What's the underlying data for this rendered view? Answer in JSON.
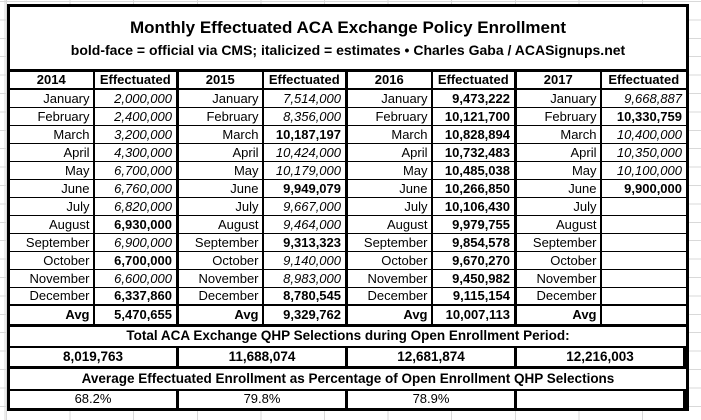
{
  "colors": {
    "background": "#ffffff",
    "text": "#000000",
    "border": "#000000",
    "gridline": "#d9d9d9"
  },
  "chart_data": {
    "type": "table",
    "title": "Monthly Effectuated ACA Exchange Policy Enrollment",
    "subtitle": "bold-face = official via CMS; italicized = estimates  •  Charles Gaba / ACASignups.net",
    "style_legend": {
      "official": "bold",
      "estimate": "italic"
    },
    "avg_label": "Avg",
    "totals_label": "Total ACA Exchange QHP Selections during Open Enrollment Period:",
    "pct_label": "Average Effectuated Enrollment as Percentage of Open Enrollment QHP Selections",
    "months": [
      "January",
      "February",
      "March",
      "April",
      "May",
      "June",
      "July",
      "August",
      "September",
      "October",
      "November",
      "December"
    ],
    "series": [
      {
        "year": "2014",
        "header": "Effectuated",
        "monthly": [
          {
            "value": "2,000,000",
            "style": "estimate"
          },
          {
            "value": "2,400,000",
            "style": "estimate"
          },
          {
            "value": "3,200,000",
            "style": "estimate"
          },
          {
            "value": "4,300,000",
            "style": "estimate"
          },
          {
            "value": "6,700,000",
            "style": "estimate"
          },
          {
            "value": "6,760,000",
            "style": "estimate"
          },
          {
            "value": "6,820,000",
            "style": "estimate"
          },
          {
            "value": "6,930,000",
            "style": "official"
          },
          {
            "value": "6,900,000",
            "style": "estimate"
          },
          {
            "value": "6,700,000",
            "style": "official"
          },
          {
            "value": "6,600,000",
            "style": "estimate"
          },
          {
            "value": "6,337,860",
            "style": "official"
          }
        ],
        "avg": "5,470,655",
        "oe_total": "8,019,763",
        "pct": "68.2%"
      },
      {
        "year": "2015",
        "header": "Effectuated",
        "monthly": [
          {
            "value": "7,514,000",
            "style": "estimate"
          },
          {
            "value": "8,356,000",
            "style": "estimate"
          },
          {
            "value": "10,187,197",
            "style": "official"
          },
          {
            "value": "10,424,000",
            "style": "estimate"
          },
          {
            "value": "10,179,000",
            "style": "estimate"
          },
          {
            "value": "9,949,079",
            "style": "official"
          },
          {
            "value": "9,667,000",
            "style": "estimate"
          },
          {
            "value": "9,464,000",
            "style": "estimate"
          },
          {
            "value": "9,313,323",
            "style": "official"
          },
          {
            "value": "9,140,000",
            "style": "estimate"
          },
          {
            "value": "8,983,000",
            "style": "estimate"
          },
          {
            "value": "8,780,545",
            "style": "official"
          }
        ],
        "avg": "9,329,762",
        "oe_total": "11,688,074",
        "pct": "79.8%"
      },
      {
        "year": "2016",
        "header": "Effectuated",
        "monthly": [
          {
            "value": "9,473,222",
            "style": "official"
          },
          {
            "value": "10,121,700",
            "style": "official"
          },
          {
            "value": "10,828,894",
            "style": "official"
          },
          {
            "value": "10,732,483",
            "style": "official"
          },
          {
            "value": "10,485,038",
            "style": "official"
          },
          {
            "value": "10,266,850",
            "style": "official"
          },
          {
            "value": "10,106,430",
            "style": "official"
          },
          {
            "value": "9,979,755",
            "style": "official"
          },
          {
            "value": "9,854,578",
            "style": "official"
          },
          {
            "value": "9,670,270",
            "style": "official"
          },
          {
            "value": "9,450,982",
            "style": "official"
          },
          {
            "value": "9,115,154",
            "style": "official"
          }
        ],
        "avg": "10,007,113",
        "oe_total": "12,681,874",
        "pct": "78.9%"
      },
      {
        "year": "2017",
        "header": "Effectuated",
        "monthly": [
          {
            "value": "9,668,887",
            "style": "estimate"
          },
          {
            "value": "10,330,759",
            "style": "official"
          },
          {
            "value": "10,400,000",
            "style": "estimate"
          },
          {
            "value": "10,350,000",
            "style": "estimate"
          },
          {
            "value": "10,100,000",
            "style": "estimate"
          },
          {
            "value": "9,900,000",
            "style": "official"
          },
          {
            "value": "",
            "style": ""
          },
          {
            "value": "",
            "style": ""
          },
          {
            "value": "",
            "style": ""
          },
          {
            "value": "",
            "style": ""
          },
          {
            "value": "",
            "style": ""
          },
          {
            "value": "",
            "style": ""
          }
        ],
        "avg": "",
        "oe_total": "12,216,003",
        "pct": ""
      }
    ]
  }
}
